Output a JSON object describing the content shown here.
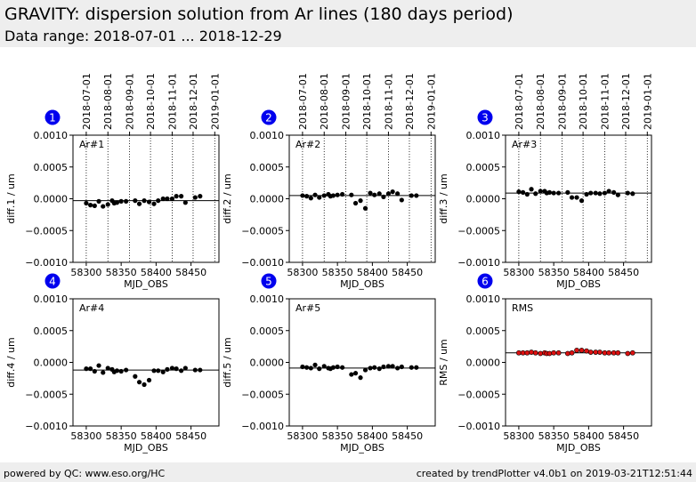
{
  "header": {
    "title": "GRAVITY: dispersion solution from Ar lines (180 days period)",
    "subtitle": "Data range: 2018-07-01 ... 2018-12-29"
  },
  "footer": {
    "left": "powered by QC: www.eso.org/HC",
    "right": "created by trendPlotter v4.0b1 on 2019-03-21T12:51:44"
  },
  "colors": {
    "badge": "#0000ee",
    "points": "#000000",
    "rms_points": "#dd1111"
  },
  "chart_data": [
    {
      "type": "scatter",
      "panel": "1",
      "label": "Ar#1",
      "xlabel": "MJD_OBS",
      "ylabel": "diff.1 / um",
      "xlim": [
        58281,
        58490
      ],
      "ylim": [
        -0.001,
        0.001
      ],
      "x_ticks": [
        58300,
        58350,
        58400,
        58450
      ],
      "y_ticks": [
        -0.001,
        -0.0005,
        0.0,
        0.0005,
        0.001
      ],
      "y_tick_labels": [
        "−0.0010",
        "−0.0005",
        "0.0000",
        "0.0005",
        "0.0010"
      ],
      "date_ticks": [
        {
          "mjd": 58300,
          "label": "2018-07-01"
        },
        {
          "mjd": 58331,
          "label": "2018-08-01"
        },
        {
          "mjd": 58362,
          "label": "2018-09-01"
        },
        {
          "mjd": 58392,
          "label": "2018-10-01"
        },
        {
          "mjd": 58423,
          "label": "2018-11-01"
        },
        {
          "mjd": 58453,
          "label": "2018-12-01"
        },
        {
          "mjd": 58484,
          "label": "2019-01-01"
        }
      ],
      "reference_line": -3e-05,
      "points": [
        [
          58300,
          -7e-05
        ],
        [
          58306,
          -0.0001
        ],
        [
          58312,
          -0.00011
        ],
        [
          58318,
          -4e-05
        ],
        [
          58324,
          -0.00012
        ],
        [
          58331,
          -9e-05
        ],
        [
          58337,
          -3e-05
        ],
        [
          58340,
          -7e-05
        ],
        [
          58344,
          -6e-05
        ],
        [
          58350,
          -4e-05
        ],
        [
          58357,
          -4e-05
        ],
        [
          58370,
          -3e-05
        ],
        [
          58376,
          -8e-05
        ],
        [
          58383,
          -3e-05
        ],
        [
          58390,
          -5e-05
        ],
        [
          58397,
          -8e-05
        ],
        [
          58403,
          -3e-05
        ],
        [
          58410,
          0.0
        ],
        [
          58416,
          0.0
        ],
        [
          58423,
          0.0
        ],
        [
          58429,
          4e-05
        ],
        [
          58436,
          4e-05
        ],
        [
          58442,
          -6e-05
        ],
        [
          58456,
          2e-05
        ],
        [
          58463,
          4e-05
        ]
      ]
    },
    {
      "type": "scatter",
      "panel": "2",
      "label": "Ar#2",
      "xlabel": "MJD_OBS",
      "ylabel": "diff.2 / um",
      "xlim": [
        58281,
        58490
      ],
      "ylim": [
        -0.001,
        0.001
      ],
      "x_ticks": [
        58300,
        58350,
        58400,
        58450
      ],
      "y_ticks": [
        -0.001,
        -0.0005,
        0.0,
        0.0005,
        0.001
      ],
      "y_tick_labels": [
        "−0.0010",
        "−0.0005",
        "0.0000",
        "0.0005",
        "0.0010"
      ],
      "date_ticks": [
        {
          "mjd": 58300,
          "label": "2018-07-01"
        },
        {
          "mjd": 58331,
          "label": "2018-08-01"
        },
        {
          "mjd": 58362,
          "label": "2018-09-01"
        },
        {
          "mjd": 58392,
          "label": "2018-10-01"
        },
        {
          "mjd": 58423,
          "label": "2018-11-01"
        },
        {
          "mjd": 58453,
          "label": "2018-12-01"
        },
        {
          "mjd": 58484,
          "label": "2019-01-01"
        }
      ],
      "reference_line": 5e-05,
      "points": [
        [
          58300,
          5e-05
        ],
        [
          58306,
          4e-05
        ],
        [
          58312,
          1e-05
        ],
        [
          58318,
          6e-05
        ],
        [
          58324,
          2e-05
        ],
        [
          58331,
          5e-05
        ],
        [
          58337,
          7e-05
        ],
        [
          58340,
          4e-05
        ],
        [
          58344,
          5e-05
        ],
        [
          58350,
          6e-05
        ],
        [
          58357,
          7e-05
        ],
        [
          58370,
          6e-05
        ],
        [
          58376,
          -7e-05
        ],
        [
          58383,
          -3e-05
        ],
        [
          58390,
          -0.00015
        ],
        [
          58397,
          9e-05
        ],
        [
          58403,
          6e-05
        ],
        [
          58410,
          8e-05
        ],
        [
          58416,
          3e-05
        ],
        [
          58423,
          8e-05
        ],
        [
          58429,
          0.00011
        ],
        [
          58436,
          8e-05
        ],
        [
          58442,
          -2e-05
        ],
        [
          58456,
          5e-05
        ],
        [
          58463,
          5e-05
        ]
      ]
    },
    {
      "type": "scatter",
      "panel": "3",
      "label": "Ar#3",
      "xlabel": "MJD_OBS",
      "ylabel": "diff.3 / um",
      "xlim": [
        58281,
        58490
      ],
      "ylim": [
        -0.001,
        0.001
      ],
      "x_ticks": [
        58300,
        58350,
        58400,
        58450
      ],
      "y_ticks": [
        -0.001,
        -0.0005,
        0.0,
        0.0005,
        0.001
      ],
      "y_tick_labels": [
        "−0.0010",
        "−0.0005",
        "0.0000",
        "0.0005",
        "0.0010"
      ],
      "date_ticks": [
        {
          "mjd": 58300,
          "label": "2018-07-01"
        },
        {
          "mjd": 58331,
          "label": "2018-08-01"
        },
        {
          "mjd": 58362,
          "label": "2018-09-01"
        },
        {
          "mjd": 58392,
          "label": "2018-10-01"
        },
        {
          "mjd": 58423,
          "label": "2018-11-01"
        },
        {
          "mjd": 58453,
          "label": "2018-12-01"
        },
        {
          "mjd": 58484,
          "label": "2019-01-01"
        }
      ],
      "reference_line": 9e-05,
      "points": [
        [
          58300,
          0.00011
        ],
        [
          58306,
          0.0001
        ],
        [
          58312,
          7e-05
        ],
        [
          58318,
          0.00015
        ],
        [
          58324,
          8e-05
        ],
        [
          58331,
          0.00012
        ],
        [
          58337,
          0.00012
        ],
        [
          58340,
          9e-05
        ],
        [
          58344,
          0.0001
        ],
        [
          58350,
          9e-05
        ],
        [
          58357,
          9e-05
        ],
        [
          58370,
          0.0001
        ],
        [
          58376,
          2e-05
        ],
        [
          58383,
          2e-05
        ],
        [
          58390,
          -3e-05
        ],
        [
          58397,
          7e-05
        ],
        [
          58403,
          9e-05
        ],
        [
          58410,
          9e-05
        ],
        [
          58416,
          8e-05
        ],
        [
          58423,
          9e-05
        ],
        [
          58429,
          0.00012
        ],
        [
          58436,
          0.0001
        ],
        [
          58442,
          6e-05
        ],
        [
          58456,
          9e-05
        ],
        [
          58463,
          8e-05
        ]
      ]
    },
    {
      "type": "scatter",
      "panel": "4",
      "label": "Ar#4",
      "xlabel": "MJD_OBS",
      "ylabel": "diff.4 / um",
      "xlim": [
        58281,
        58490
      ],
      "ylim": [
        -0.001,
        0.001
      ],
      "x_ticks": [
        58300,
        58350,
        58400,
        58450
      ],
      "y_ticks": [
        -0.001,
        -0.0005,
        0.0,
        0.0005,
        0.001
      ],
      "y_tick_labels": [
        "−0.0010",
        "−0.0005",
        "0.0000",
        "0.0005",
        "0.0010"
      ],
      "reference_line": -0.00012,
      "points": [
        [
          58300,
          -0.0001
        ],
        [
          58306,
          -0.0001
        ],
        [
          58312,
          -0.00014
        ],
        [
          58318,
          -5e-05
        ],
        [
          58324,
          -0.00016
        ],
        [
          58331,
          -9e-05
        ],
        [
          58337,
          -0.00011
        ],
        [
          58340,
          -0.00015
        ],
        [
          58344,
          -0.00013
        ],
        [
          58350,
          -0.00014
        ],
        [
          58357,
          -0.00012
        ],
        [
          58370,
          -0.00022
        ],
        [
          58376,
          -0.00031
        ],
        [
          58383,
          -0.00035
        ],
        [
          58390,
          -0.00028
        ],
        [
          58397,
          -0.00013
        ],
        [
          58403,
          -0.00013
        ],
        [
          58410,
          -0.00015
        ],
        [
          58416,
          -0.00011
        ],
        [
          58423,
          -9e-05
        ],
        [
          58429,
          -0.0001
        ],
        [
          58436,
          -0.00013
        ],
        [
          58442,
          -9e-05
        ],
        [
          58456,
          -0.00012
        ],
        [
          58463,
          -0.00012
        ]
      ]
    },
    {
      "type": "scatter",
      "panel": "5",
      "label": "Ar#5",
      "xlabel": "MJD_OBS",
      "ylabel": "diff.5 / um",
      "xlim": [
        58281,
        58490
      ],
      "ylim": [
        -0.001,
        0.001
      ],
      "x_ticks": [
        58300,
        58350,
        58400,
        58450
      ],
      "y_ticks": [
        -0.001,
        -0.0005,
        0.0,
        0.0005,
        0.001
      ],
      "y_tick_labels": [
        "−0.0010",
        "−0.0005",
        "0.0000",
        "0.0005",
        "0.0010"
      ],
      "reference_line": -9e-05,
      "points": [
        [
          58300,
          -7e-05
        ],
        [
          58306,
          -8e-05
        ],
        [
          58312,
          -9e-05
        ],
        [
          58318,
          -4e-05
        ],
        [
          58324,
          -0.0001
        ],
        [
          58331,
          -6e-05
        ],
        [
          58337,
          -9e-05
        ],
        [
          58340,
          -0.0001
        ],
        [
          58344,
          -8e-05
        ],
        [
          58350,
          -7e-05
        ],
        [
          58357,
          -8e-05
        ],
        [
          58370,
          -0.00019
        ],
        [
          58376,
          -0.00017
        ],
        [
          58383,
          -0.00024
        ],
        [
          58390,
          -0.00012
        ],
        [
          58397,
          -9e-05
        ],
        [
          58403,
          -8e-05
        ],
        [
          58410,
          -0.0001
        ],
        [
          58416,
          -7e-05
        ],
        [
          58423,
          -6e-05
        ],
        [
          58429,
          -6e-05
        ],
        [
          58436,
          -9e-05
        ],
        [
          58442,
          -7e-05
        ],
        [
          58456,
          -8e-05
        ],
        [
          58463,
          -8e-05
        ]
      ]
    },
    {
      "type": "scatter",
      "panel": "6",
      "label": "RMS",
      "xlabel": "MJD_OBS",
      "ylabel": "RMS / um",
      "xlim": [
        58281,
        58490
      ],
      "ylim": [
        -0.001,
        0.001
      ],
      "x_ticks": [
        58300,
        58350,
        58400,
        58450
      ],
      "y_ticks": [
        -0.001,
        -0.0005,
        0.0,
        0.0005,
        0.001
      ],
      "y_tick_labels": [
        "−0.0010",
        "−0.0005",
        "0.0000",
        "0.0005",
        "0.0010"
      ],
      "reference_line": 0.00015,
      "points": [
        [
          58300,
          0.00015
        ],
        [
          58306,
          0.00015
        ],
        [
          58312,
          0.00015
        ],
        [
          58318,
          0.00016
        ],
        [
          58324,
          0.00015
        ],
        [
          58331,
          0.00014
        ],
        [
          58337,
          0.00015
        ],
        [
          58340,
          0.00014
        ],
        [
          58344,
          0.00014
        ],
        [
          58350,
          0.00015
        ],
        [
          58357,
          0.00015
        ],
        [
          58370,
          0.00014
        ],
        [
          58376,
          0.00015
        ],
        [
          58383,
          0.00019
        ],
        [
          58390,
          0.00019
        ],
        [
          58397,
          0.00018
        ],
        [
          58403,
          0.00016
        ],
        [
          58410,
          0.00016
        ],
        [
          58416,
          0.00016
        ],
        [
          58423,
          0.00015
        ],
        [
          58429,
          0.00015
        ],
        [
          58436,
          0.00015
        ],
        [
          58442,
          0.00015
        ],
        [
          58456,
          0.00014
        ],
        [
          58463,
          0.00015
        ]
      ]
    }
  ]
}
